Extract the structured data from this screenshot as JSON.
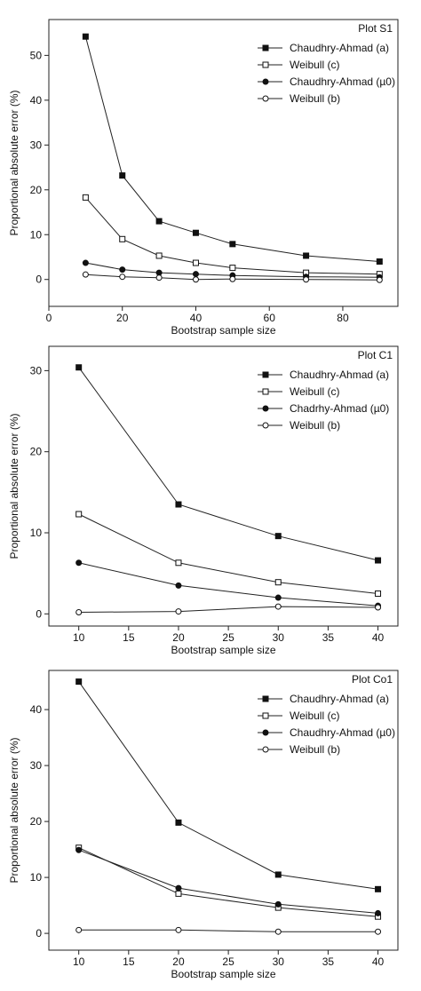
{
  "chart_data": [
    {
      "type": "line",
      "title": "Plot S1",
      "xlabel": "Bootstrap sample size",
      "ylabel": "Proportional absolute error (%)",
      "xlim": [
        0,
        95
      ],
      "ylim": [
        -6,
        58
      ],
      "xticks": [
        0,
        20,
        40,
        60,
        80
      ],
      "yticks": [
        0,
        10,
        20,
        30,
        40,
        50
      ],
      "legend_position": "top-right",
      "grid": false,
      "x": [
        10,
        20,
        30,
        40,
        50,
        70,
        90
      ],
      "series": [
        {
          "name": "Chaudhry-Ahmad (a)",
          "marker": "filled-square",
          "values": [
            54.2,
            23.2,
            13.0,
            10.4,
            7.9,
            5.3,
            4.0
          ]
        },
        {
          "name": "Weibull (c)",
          "marker": "open-square",
          "values": [
            18.3,
            9.0,
            5.3,
            3.7,
            2.6,
            1.5,
            1.2
          ]
        },
        {
          "name": "Chaudhry-Ahmad (µ0)",
          "marker": "filled-circle",
          "values": [
            3.7,
            2.2,
            1.5,
            1.2,
            0.9,
            0.6,
            0.5
          ]
        },
        {
          "name": "Weibull (b)",
          "marker": "open-circle",
          "values": [
            1.1,
            0.6,
            0.4,
            0.0,
            0.1,
            0.0,
            -0.1
          ]
        }
      ]
    },
    {
      "type": "line",
      "title": "Plot C1",
      "xlabel": "Bootstrap sample size",
      "ylabel": "Proportional absolute error (%)",
      "xlim": [
        7,
        42
      ],
      "ylim": [
        -1.5,
        33
      ],
      "xticks": [
        10,
        15,
        20,
        25,
        30,
        35,
        40
      ],
      "yticks": [
        0,
        10,
        20,
        30
      ],
      "legend_position": "top-right",
      "grid": false,
      "x": [
        10,
        20,
        30,
        40
      ],
      "series": [
        {
          "name": "Chaudhry-Ahmad (a)",
          "marker": "filled-square",
          "values": [
            30.4,
            13.5,
            9.6,
            6.6
          ]
        },
        {
          "name": "Weibull (c)",
          "marker": "open-square",
          "values": [
            12.3,
            6.3,
            3.9,
            2.5
          ]
        },
        {
          "name": "Chadrhy-Ahmad (µ0)",
          "marker": "filled-circle",
          "values": [
            6.3,
            3.5,
            2.0,
            1.0
          ]
        },
        {
          "name": "Weibull (b)",
          "marker": "open-circle",
          "values": [
            0.2,
            0.3,
            0.9,
            0.8
          ]
        }
      ]
    },
    {
      "type": "line",
      "title": "Plot Co1",
      "xlabel": "Bootstrap sample size",
      "ylabel": "Proportional absolute error (%)",
      "xlim": [
        7,
        42
      ],
      "ylim": [
        -3,
        47
      ],
      "xticks": [
        10,
        15,
        20,
        25,
        30,
        35,
        40
      ],
      "yticks": [
        0,
        10,
        20,
        30,
        40
      ],
      "legend_position": "top-right",
      "grid": false,
      "x": [
        10,
        20,
        30,
        40
      ],
      "series": [
        {
          "name": "Chaudhry-Ahmad (a)",
          "marker": "filled-square",
          "values": [
            45.0,
            19.8,
            10.5,
            7.9
          ]
        },
        {
          "name": "Weibull (c)",
          "marker": "open-square",
          "values": [
            15.3,
            7.1,
            4.6,
            3.0
          ]
        },
        {
          "name": "Chaudhry-Ahmad (µ0)",
          "marker": "filled-circle",
          "values": [
            14.9,
            8.1,
            5.2,
            3.6
          ]
        },
        {
          "name": "Weibull (b)",
          "marker": "open-circle",
          "values": [
            0.6,
            0.6,
            0.3,
            0.3
          ]
        }
      ]
    }
  ]
}
